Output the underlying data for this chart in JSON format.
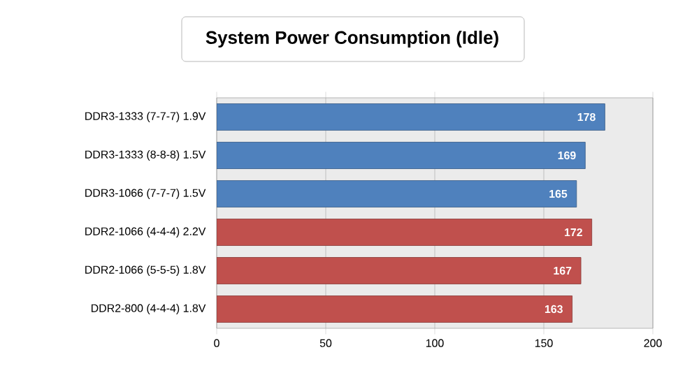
{
  "chart_data": {
    "type": "bar",
    "orientation": "horizontal",
    "title": "System Power Consumption (Idle)",
    "categories": [
      "DDR3-1333 (7-7-7) 1.9V",
      "DDR3-1333 (8-8-8) 1.5V",
      "DDR3-1066 (7-7-7) 1.5V",
      "DDR2-1066 (4-4-4) 2.2V",
      "DDR2-1066 (5-5-5) 1.8V",
      "DDR2-800 (4-4-4) 1.8V"
    ],
    "values": [
      178,
      169,
      165,
      172,
      167,
      163
    ],
    "colors": [
      "#4f81bd",
      "#4f81bd",
      "#4f81bd",
      "#c0504d",
      "#c0504d",
      "#c0504d"
    ],
    "xlim": [
      0,
      200
    ],
    "xticks": [
      0,
      50,
      100,
      150,
      200
    ],
    "grid": "x",
    "data_labels": true
  }
}
